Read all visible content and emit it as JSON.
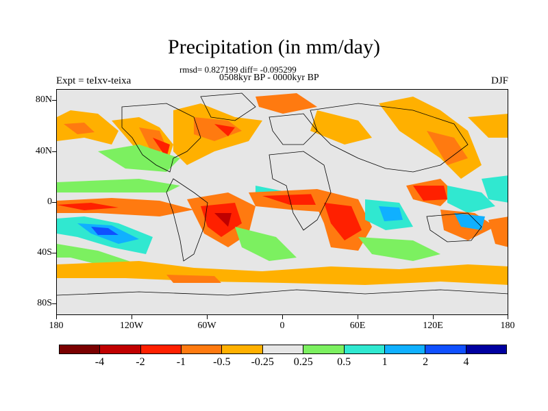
{
  "title": "Precipitation (in mm/day)",
  "stats_line": "rmsd= 0.827199 diff= -0.095299",
  "period_line": "0508kyr BP - 0000kyr BP",
  "experiment_label": "Expt = teIxv-teixa",
  "season_label": "DJF",
  "lat_labels": [
    "80N",
    "40N",
    "0",
    "40S",
    "80S"
  ],
  "lon_labels": [
    "180",
    "120W",
    "60W",
    "0",
    "60E",
    "120E",
    "180"
  ],
  "colorbar": {
    "colors": [
      "#7a0000",
      "#c00000",
      "#ff2000",
      "#ff7a10",
      "#ffb000",
      "#e6e6e6",
      "#7cf060",
      "#30e8d0",
      "#10b0ff",
      "#1050ff",
      "#0000a0"
    ],
    "labels": [
      "-4",
      "-2",
      "-1",
      "-0.5",
      "-0.25",
      "0.25",
      "0.5",
      "1",
      "2",
      "4"
    ]
  }
}
